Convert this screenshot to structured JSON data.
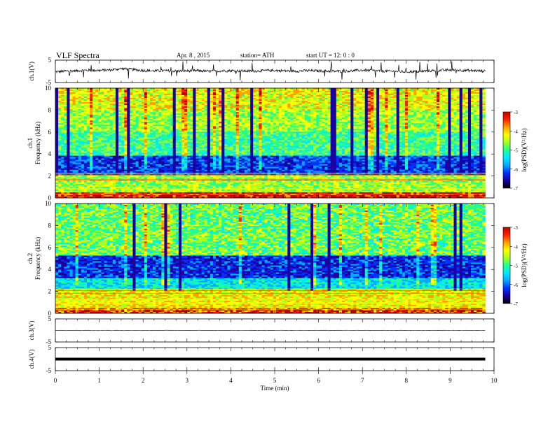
{
  "header": {
    "title": "VLF Spectra",
    "date": "Apr. 8 , 2015",
    "station": "station= ATH",
    "start": "start UT = 12: 0 : 0"
  },
  "colors": {
    "colormap": [
      "#000000",
      "#1a00a0",
      "#0030ff",
      "#00a8ff",
      "#00e8ff",
      "#20ff90",
      "#a8ff20",
      "#ffff00",
      "#ffa000",
      "#ff2000",
      "#c00000",
      "#ffffff"
    ],
    "trace": "#000000",
    "frame": "#000000"
  },
  "chart_data": [
    {
      "type": "line",
      "ylabel": "ch.1(V)",
      "yticks": [
        "5",
        "-5"
      ],
      "ylim": [
        -5,
        5
      ],
      "xlim": [
        0,
        10
      ],
      "series": [
        {
          "description_values": "waveform",
          "x": [
            0,
            0.25,
            0.5,
            0.75,
            1.0,
            1.25,
            1.5,
            1.75,
            2.0,
            2.25,
            2.5,
            2.75,
            3.0,
            3.25,
            3.5,
            3.75,
            4.0,
            4.25,
            4.5,
            4.75,
            5.0,
            5.25,
            5.5,
            5.75,
            6.0,
            6.25,
            6.5,
            6.75,
            7.0,
            7.25,
            7.5,
            7.75,
            8.0,
            8.25,
            8.5,
            8.75,
            9.0,
            9.25,
            9.5,
            9.8
          ],
          "y": [
            -0.2,
            0.1,
            0.3,
            0.5,
            0.4,
            0.6,
            1.2,
            0.8,
            0.4,
            0.2,
            0.3,
            0.1,
            0.2,
            0.3,
            0.0,
            0.2,
            0.3,
            0.2,
            0.1,
            0.3,
            0.4,
            0.2,
            0.1,
            0.3,
            0.2,
            0.1,
            0.0,
            0.2,
            0.5,
            0.3,
            0.1,
            0.0,
            -0.2,
            -0.1,
            0.2,
            0.4,
            0.6,
            0.5,
            0.3,
            0.1
          ]
        }
      ]
    },
    {
      "type": "heatmap",
      "ylabel": "ch.1 Frequency (kHz)",
      "yticks": [
        "0",
        "2",
        "4",
        "6",
        "8",
        "10"
      ],
      "ylim": [
        0,
        10
      ],
      "xlim": [
        0,
        10
      ],
      "colorbar": {
        "label": "log(PSD)(V²/Hz)",
        "ticks": [
          "-3",
          "-4",
          "-5",
          "-6",
          "-7"
        ],
        "range": [
          -7,
          -3
        ]
      },
      "description": "log PSD vs time and frequency",
      "bands_khz_level": [
        [
          0,
          0.5,
          -3.6
        ],
        [
          0.5,
          2.0,
          -4.8
        ],
        [
          2.0,
          3.8,
          -6.4
        ],
        [
          3.8,
          6.0,
          -5.2
        ],
        [
          6.0,
          8.0,
          -4.8
        ],
        [
          8.0,
          10.0,
          -4.5
        ]
      ]
    },
    {
      "type": "heatmap",
      "ylabel": "ch.2 Frequency (kHz)",
      "yticks": [
        "0",
        "2",
        "4",
        "6",
        "8",
        "10"
      ],
      "ylim": [
        0,
        10
      ],
      "xlim": [
        0,
        10
      ],
      "colorbar": {
        "label": "log(PSD)(V²/Hz)",
        "ticks": [
          "-3",
          "-4",
          "-5",
          "-6",
          "-7"
        ],
        "range": [
          -7,
          -3
        ]
      },
      "bands_khz_level": [
        [
          0,
          0.5,
          -3.8
        ],
        [
          0.5,
          2.2,
          -4.4
        ],
        [
          2.2,
          3.2,
          -5.6
        ],
        [
          3.2,
          5.2,
          -6.5
        ],
        [
          5.2,
          10.0,
          -5.0
        ]
      ]
    },
    {
      "type": "line",
      "ylabel": "ch.3(V)",
      "yticks": [
        "5",
        "-5"
      ],
      "ylim": [
        -5,
        5
      ],
      "xlim": [
        0,
        10
      ],
      "series": [
        {
          "x": [
            0,
            9.8
          ],
          "y": [
            0,
            0
          ]
        }
      ]
    },
    {
      "type": "line",
      "ylabel": "ch.4(V)",
      "yticks": [
        "5",
        "-5"
      ],
      "ylim": [
        -5,
        5
      ],
      "xlim": [
        0,
        10
      ],
      "xticks": [
        "0",
        "1",
        "2",
        "3",
        "4",
        "5",
        "6",
        "7",
        "8",
        "9",
        "10"
      ],
      "xlabel": "Time (min)",
      "series": [
        {
          "x": [
            0,
            9.8
          ],
          "y": [
            0,
            0
          ]
        }
      ]
    }
  ]
}
